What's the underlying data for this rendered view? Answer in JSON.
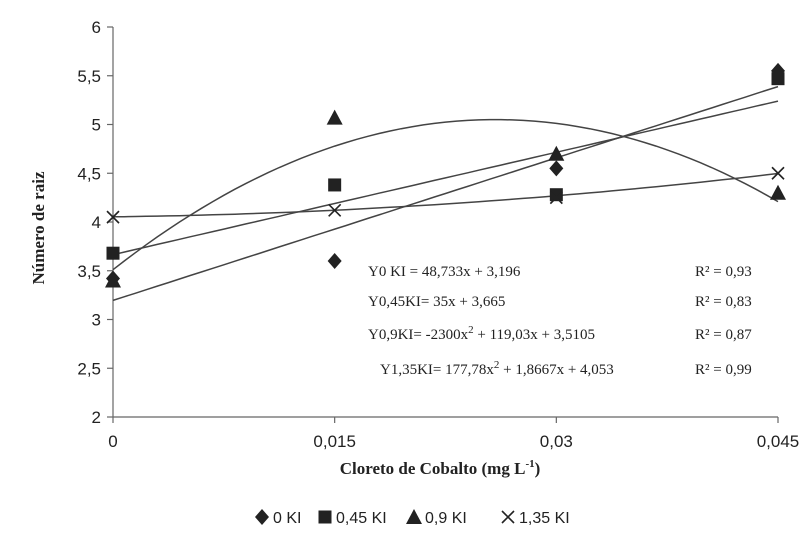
{
  "chart_data": {
    "type": "scatter",
    "xlabel": "Cloreto de Cobalto (mg L",
    "xlabel_sup": "-1",
    "xlabel_close": ")",
    "ylabel": "Número de raiz",
    "x_ticks": [
      "0",
      "0,015",
      "0,03",
      "0,045"
    ],
    "x_values": [
      0,
      0.015,
      0.03,
      0.045
    ],
    "y_ticks": [
      "2",
      "2,5",
      "3",
      "3,5",
      "4",
      "4,5",
      "5",
      "5,5",
      "6"
    ],
    "ylim": [
      2,
      6
    ],
    "xlim": [
      0,
      0.045
    ],
    "grid": false,
    "legend_position": "bottom",
    "series": [
      {
        "name": "0 KI",
        "marker": "diamond",
        "values": [
          3.42,
          3.6,
          4.55,
          5.55
        ],
        "fit": {
          "type": "linear",
          "a": 48.733,
          "b": 3.196
        }
      },
      {
        "name": "0,45 KI",
        "marker": "square",
        "values": [
          3.68,
          4.38,
          4.28,
          5.47
        ],
        "fit": {
          "type": "linear",
          "a": 35,
          "b": 3.665
        }
      },
      {
        "name": "0,9 KI",
        "marker": "triangle",
        "values": [
          3.4,
          5.07,
          4.7,
          4.3
        ],
        "fit": {
          "type": "quadratic",
          "a2": -2300,
          "a1": 119.03,
          "b": 3.5105
        }
      },
      {
        "name": "1,35 KI",
        "marker": "x",
        "values": [
          4.05,
          4.12,
          4.25,
          4.5
        ],
        "fit": {
          "type": "quadratic",
          "a2": 177.78,
          "a1": 1.8667,
          "b": 4.053
        }
      }
    ],
    "equations": [
      {
        "parts": [
          "Y0 KI = 48,733x + 3,196"
        ],
        "r2": "R² = 0,93"
      },
      {
        "parts": [
          "Y0,45KI= 35x + 3,665"
        ],
        "r2": "R² = 0,83"
      },
      {
        "parts": [
          "Y0,9KI= -2300x",
          "2",
          " + 119,03x + 3,5105"
        ],
        "r2": "R² = 0,87"
      },
      {
        "parts": [
          "Y1,35KI= 177,78x",
          "2",
          " + 1,8667x + 4,053"
        ],
        "r2": "R² = 0,99"
      }
    ]
  },
  "colors": {
    "ink": "#222222",
    "axis": "#666666",
    "line": "#444444"
  }
}
